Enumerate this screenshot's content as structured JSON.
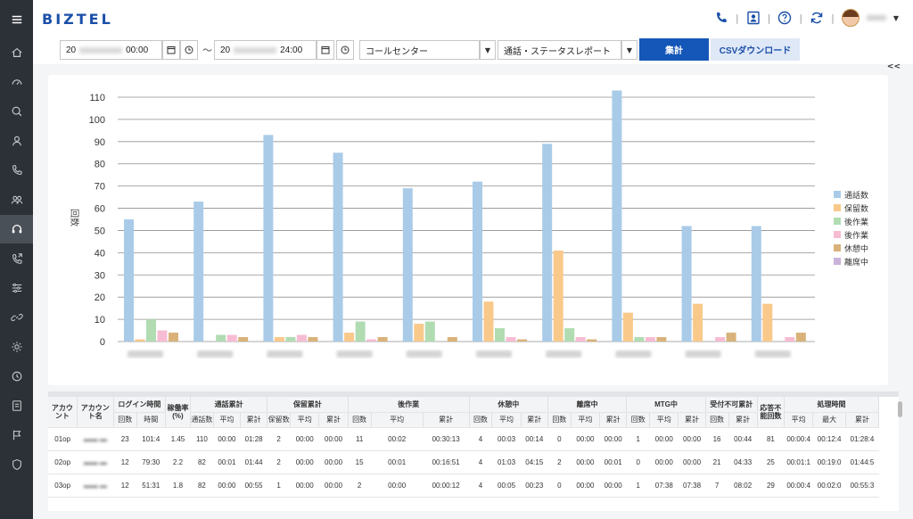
{
  "app": {
    "logo": "BIZTEL"
  },
  "sidebar": {
    "items": [
      {
        "name": "home-icon"
      },
      {
        "name": "speedometer-icon"
      },
      {
        "name": "search-icon"
      },
      {
        "name": "user-icon"
      },
      {
        "name": "phone-icon"
      },
      {
        "name": "users-icon"
      },
      {
        "name": "headset-icon",
        "active": true
      },
      {
        "name": "phone-forward-icon"
      },
      {
        "name": "sliders-icon"
      },
      {
        "name": "link-icon"
      },
      {
        "name": "gear-icon"
      },
      {
        "name": "history-icon"
      },
      {
        "name": "document-icon"
      },
      {
        "name": "flag-icon"
      },
      {
        "name": "shield-icon"
      }
    ]
  },
  "filters": {
    "start_prefix": "20",
    "start_time": "00:00",
    "separator": "〜",
    "end_prefix": "20",
    "end_time": "24:00",
    "group": "コールセンター",
    "report": "通話・ステータスレポート",
    "aggregate_label": "集計",
    "csv_label": "CSVダウンロード",
    "collapse_label": "<<"
  },
  "colors": {
    "primary": "#1557b8",
    "sidebar": "#2c3137"
  },
  "chart_data": {
    "type": "bar",
    "ylabel": "回数",
    "ylim": [
      0,
      110
    ],
    "yticks": [
      0,
      10,
      20,
      30,
      40,
      50,
      60,
      70,
      80,
      90,
      100,
      110
    ],
    "categories": [
      "",
      "",
      "",
      "",
      "",
      "",
      "",
      "",
      "",
      ""
    ],
    "series": [
      {
        "name": "通話数",
        "color": "#a9cbe8",
        "values": [
          55,
          63,
          93,
          85,
          69,
          72,
          89,
          113,
          52,
          52
        ]
      },
      {
        "name": "保留数",
        "color": "#f9c98b",
        "values": [
          1,
          0,
          2,
          4,
          8,
          18,
          41,
          13,
          17,
          17
        ]
      },
      {
        "name": "後作業",
        "color": "#b1dcb2",
        "values": [
          10,
          3,
          2,
          9,
          9,
          6,
          6,
          2,
          0,
          0
        ]
      },
      {
        "name": "後作業",
        "color": "#f7bcd4",
        "values": [
          5,
          3,
          3,
          1,
          0,
          2,
          2,
          2,
          2,
          2
        ]
      },
      {
        "name": "休憩中",
        "color": "#d9b27a",
        "values": [
          4,
          2,
          2,
          2,
          2,
          1,
          1,
          2,
          4,
          4
        ]
      },
      {
        "name": "離席中",
        "color": "#c9b3d9",
        "values": [
          0,
          0,
          0,
          0,
          0,
          0,
          0,
          0,
          0,
          0
        ]
      }
    ],
    "legend": "right"
  },
  "table": {
    "group_headers": [
      "アカウント",
      "アカウント名",
      "ログイン時間",
      "稼働率(%)",
      "通話累計",
      "保留累計",
      "後作業",
      "休憩中",
      "離席中",
      "MTG中",
      "受付不可累計",
      "応答不能回数",
      "処理時間"
    ],
    "sub_headers": {
      "login": [
        "回数",
        "時間"
      ],
      "call": [
        "通話数",
        "平均",
        "累計"
      ],
      "hold": [
        "保留数",
        "平均",
        "累計"
      ],
      "after": [
        "回数",
        "平均",
        "累計"
      ],
      "rest": [
        "回数",
        "平均",
        "累計"
      ],
      "away": [
        "回数",
        "平均",
        "累計"
      ],
      "mtg": [
        "回数",
        "平均",
        "累計"
      ],
      "unavail": [
        "回数",
        "累計"
      ],
      "proc": [
        "平均",
        "最大",
        "累計"
      ]
    },
    "rows": [
      [
        "01op",
        "",
        "23",
        "101:4",
        "1.45",
        "110",
        "00:00",
        "01:28",
        "2",
        "00:00",
        "00:00",
        "11",
        "00:02",
        "00:30:13",
        "4",
        "00:03",
        "00:14",
        "0",
        "00:00",
        "00:00",
        "1",
        "00:00",
        "00:00",
        "16",
        "00:44",
        "81",
        "00:00:4",
        "00:12:4",
        "01:28:4"
      ],
      [
        "02op",
        "",
        "12",
        "79:30",
        "2.2",
        "82",
        "00:01",
        "01:44",
        "2",
        "00:00",
        "00:00",
        "15",
        "00:01",
        "00:16:51",
        "4",
        "01:03",
        "04:15",
        "2",
        "00:00",
        "00:01",
        "0",
        "00:00",
        "00:00",
        "21",
        "04:33",
        "25",
        "00:01:1",
        "00:19:0",
        "01:44:5"
      ],
      [
        "03op",
        "",
        "12",
        "51:31",
        "1.8",
        "82",
        "00:00",
        "00:55",
        "1",
        "00:00",
        "00:00",
        "2",
        "00:00",
        "00:00:12",
        "4",
        "00:05",
        "00:23",
        "0",
        "00:00",
        "00:00",
        "1",
        "07:38",
        "07:38",
        "7",
        "08:02",
        "29",
        "00:00:4",
        "00:02:0",
        "00:55:3"
      ]
    ]
  }
}
